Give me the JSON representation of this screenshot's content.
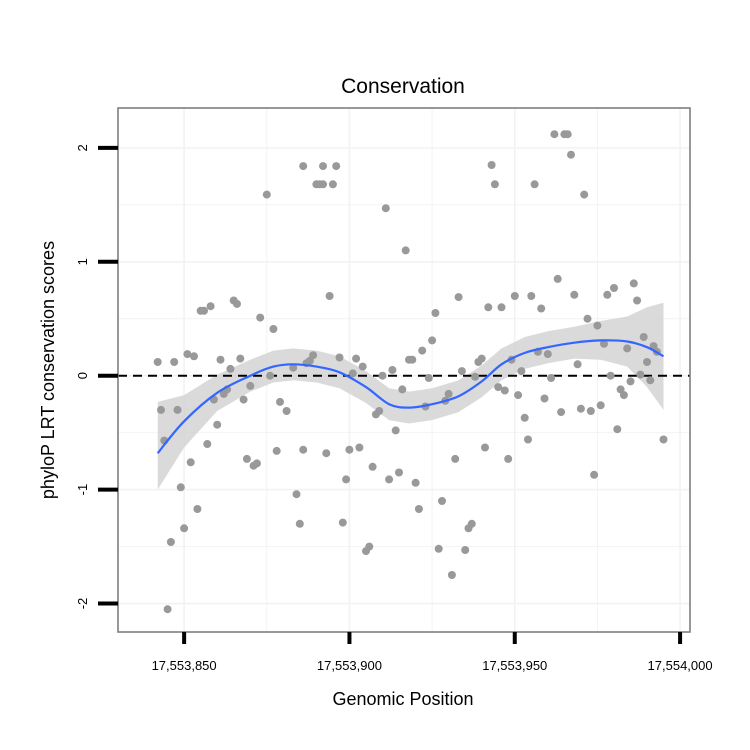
{
  "chart_data": {
    "type": "scatter",
    "title": "Conservation",
    "xlabel": "Genomic Position",
    "ylabel": "phyloP LRT conservation scores",
    "xlim": [
      17553830,
      17554003
    ],
    "ylim": [
      -2.25,
      2.35
    ],
    "x_ticks": [
      17553850,
      17553900,
      17553950,
      17554000
    ],
    "x_tick_labels": [
      "17,553,850",
      "17,553,900",
      "17,553,950",
      "17,554,000"
    ],
    "y_ticks": [
      -2,
      -1,
      0,
      1,
      2
    ],
    "y_tick_labels": [
      "-2",
      "-1",
      "0",
      "1",
      "2"
    ],
    "grid": true,
    "reference_line": {
      "y": 0,
      "style": "dashed"
    },
    "colors": {
      "points": "#999999",
      "smooth": "#3366ff",
      "band": "#d3d3d3",
      "grid": "#f2f2f2",
      "border": "#7f7f7f",
      "reference": "#000000"
    },
    "points": [
      {
        "x": 17553842,
        "y": 0.12
      },
      {
        "x": 17553843,
        "y": -0.3
      },
      {
        "x": 17553844,
        "y": -0.57
      },
      {
        "x": 17553845,
        "y": -2.05
      },
      {
        "x": 17553846,
        "y": -1.46
      },
      {
        "x": 17553847,
        "y": 0.12
      },
      {
        "x": 17553848,
        "y": -0.3
      },
      {
        "x": 17553849,
        "y": -0.98
      },
      {
        "x": 17553850,
        "y": -1.34
      },
      {
        "x": 17553851,
        "y": 0.19
      },
      {
        "x": 17553852,
        "y": -0.76
      },
      {
        "x": 17553853,
        "y": 0.17
      },
      {
        "x": 17553854,
        "y": -1.17
      },
      {
        "x": 17553855,
        "y": 0.57
      },
      {
        "x": 17553856,
        "y": 0.57
      },
      {
        "x": 17553857,
        "y": -0.6
      },
      {
        "x": 17553858,
        "y": 0.61
      },
      {
        "x": 17553859,
        "y": -0.21
      },
      {
        "x": 17553860,
        "y": -0.43
      },
      {
        "x": 17553861,
        "y": 0.14
      },
      {
        "x": 17553862,
        "y": -0.16
      },
      {
        "x": 17553863,
        "y": -0.12
      },
      {
        "x": 17553864,
        "y": 0.06
      },
      {
        "x": 17553865,
        "y": 0.66
      },
      {
        "x": 17553866,
        "y": 0.63
      },
      {
        "x": 17553867,
        "y": 0.15
      },
      {
        "x": 17553868,
        "y": -0.21
      },
      {
        "x": 17553869,
        "y": -0.73
      },
      {
        "x": 17553870,
        "y": -0.09
      },
      {
        "x": 17553871,
        "y": -0.79
      },
      {
        "x": 17553872,
        "y": -0.77
      },
      {
        "x": 17553873,
        "y": 0.51
      },
      {
        "x": 17553875,
        "y": 1.59
      },
      {
        "x": 17553876,
        "y": 0.0
      },
      {
        "x": 17553877,
        "y": 0.41
      },
      {
        "x": 17553878,
        "y": -0.66
      },
      {
        "x": 17553879,
        "y": -0.23
      },
      {
        "x": 17553881,
        "y": -0.31
      },
      {
        "x": 17553883,
        "y": 0.07
      },
      {
        "x": 17553884,
        "y": -1.04
      },
      {
        "x": 17553885,
        "y": -1.3
      },
      {
        "x": 17553886,
        "y": 1.84
      },
      {
        "x": 17553886,
        "y": -0.65
      },
      {
        "x": 17553887,
        "y": 0.11
      },
      {
        "x": 17553888,
        "y": 0.13
      },
      {
        "x": 17553889,
        "y": 0.18
      },
      {
        "x": 17553890,
        "y": 1.68
      },
      {
        "x": 17553891,
        "y": 1.68
      },
      {
        "x": 17553892,
        "y": 1.68
      },
      {
        "x": 17553892,
        "y": 1.84
      },
      {
        "x": 17553893,
        "y": -0.68
      },
      {
        "x": 17553894,
        "y": 0.7
      },
      {
        "x": 17553895,
        "y": 1.68
      },
      {
        "x": 17553896,
        "y": 1.84
      },
      {
        "x": 17553897,
        "y": 0.16
      },
      {
        "x": 17553898,
        "y": -1.29
      },
      {
        "x": 17553899,
        "y": -0.91
      },
      {
        "x": 17553900,
        "y": -0.65
      },
      {
        "x": 17553901,
        "y": 0.02
      },
      {
        "x": 17553902,
        "y": 0.15
      },
      {
        "x": 17553903,
        "y": -0.63
      },
      {
        "x": 17553904,
        "y": 0.08
      },
      {
        "x": 17553905,
        "y": -1.54
      },
      {
        "x": 17553906,
        "y": -1.5
      },
      {
        "x": 17553907,
        "y": -0.8
      },
      {
        "x": 17553908,
        "y": -0.34
      },
      {
        "x": 17553909,
        "y": -0.31
      },
      {
        "x": 17553910,
        "y": 0.0
      },
      {
        "x": 17553911,
        "y": 1.47
      },
      {
        "x": 17553912,
        "y": -0.91
      },
      {
        "x": 17553913,
        "y": 0.05
      },
      {
        "x": 17553914,
        "y": -0.48
      },
      {
        "x": 17553915,
        "y": -0.85
      },
      {
        "x": 17553916,
        "y": -0.12
      },
      {
        "x": 17553917,
        "y": 1.1
      },
      {
        "x": 17553918,
        "y": 0.14
      },
      {
        "x": 17553919,
        "y": 0.14
      },
      {
        "x": 17553920,
        "y": -0.94
      },
      {
        "x": 17553921,
        "y": -1.17
      },
      {
        "x": 17553922,
        "y": 0.22
      },
      {
        "x": 17553923,
        "y": -0.27
      },
      {
        "x": 17553924,
        "y": -0.02
      },
      {
        "x": 17553925,
        "y": 0.31
      },
      {
        "x": 17553926,
        "y": 0.55
      },
      {
        "x": 17553927,
        "y": -1.52
      },
      {
        "x": 17553928,
        "y": -1.1
      },
      {
        "x": 17553929,
        "y": -0.22
      },
      {
        "x": 17553930,
        "y": -0.16
      },
      {
        "x": 17553931,
        "y": -1.75
      },
      {
        "x": 17553932,
        "y": -0.73
      },
      {
        "x": 17553933,
        "y": 0.69
      },
      {
        "x": 17553934,
        "y": 0.04
      },
      {
        "x": 17553935,
        "y": -1.53
      },
      {
        "x": 17553936,
        "y": -1.34
      },
      {
        "x": 17553937,
        "y": -1.3
      },
      {
        "x": 17553938,
        "y": -0.01
      },
      {
        "x": 17553939,
        "y": 0.12
      },
      {
        "x": 17553940,
        "y": 0.15
      },
      {
        "x": 17553941,
        "y": -0.63
      },
      {
        "x": 17553942,
        "y": 0.6
      },
      {
        "x": 17553943,
        "y": 1.85
      },
      {
        "x": 17553944,
        "y": 1.68
      },
      {
        "x": 17553945,
        "y": -0.1
      },
      {
        "x": 17553946,
        "y": 0.6
      },
      {
        "x": 17553947,
        "y": -0.13
      },
      {
        "x": 17553948,
        "y": -0.73
      },
      {
        "x": 17553949,
        "y": 0.14
      },
      {
        "x": 17553950,
        "y": 0.7
      },
      {
        "x": 17553951,
        "y": -0.17
      },
      {
        "x": 17553952,
        "y": 0.04
      },
      {
        "x": 17553953,
        "y": -0.37
      },
      {
        "x": 17553954,
        "y": -0.56
      },
      {
        "x": 17553955,
        "y": 0.7
      },
      {
        "x": 17553956,
        "y": 1.68
      },
      {
        "x": 17553957,
        "y": 0.21
      },
      {
        "x": 17553958,
        "y": 0.59
      },
      {
        "x": 17553959,
        "y": -0.2
      },
      {
        "x": 17553960,
        "y": 0.19
      },
      {
        "x": 17553961,
        "y": -0.02
      },
      {
        "x": 17553962,
        "y": 2.12
      },
      {
        "x": 17553963,
        "y": 0.85
      },
      {
        "x": 17553964,
        "y": -0.32
      },
      {
        "x": 17553965,
        "y": 2.12
      },
      {
        "x": 17553966,
        "y": 2.12
      },
      {
        "x": 17553967,
        "y": 1.94
      },
      {
        "x": 17553968,
        "y": 0.71
      },
      {
        "x": 17553969,
        "y": 0.1
      },
      {
        "x": 17553970,
        "y": -0.29
      },
      {
        "x": 17553971,
        "y": 1.59
      },
      {
        "x": 17553972,
        "y": 0.5
      },
      {
        "x": 17553973,
        "y": -0.31
      },
      {
        "x": 17553974,
        "y": -0.87
      },
      {
        "x": 17553975,
        "y": 0.44
      },
      {
        "x": 17553976,
        "y": -0.26
      },
      {
        "x": 17553977,
        "y": 0.28
      },
      {
        "x": 17553978,
        "y": 0.71
      },
      {
        "x": 17553979,
        "y": 0.0
      },
      {
        "x": 17553980,
        "y": 0.77
      },
      {
        "x": 17553981,
        "y": -0.47
      },
      {
        "x": 17553982,
        "y": -0.12
      },
      {
        "x": 17553983,
        "y": -0.17
      },
      {
        "x": 17553984,
        "y": 0.24
      },
      {
        "x": 17553985,
        "y": -0.05
      },
      {
        "x": 17553986,
        "y": 0.81
      },
      {
        "x": 17553987,
        "y": 0.66
      },
      {
        "x": 17553988,
        "y": 0.01
      },
      {
        "x": 17553989,
        "y": 0.34
      },
      {
        "x": 17553990,
        "y": 0.12
      },
      {
        "x": 17553991,
        "y": -0.04
      },
      {
        "x": 17553992,
        "y": 0.26
      },
      {
        "x": 17553993,
        "y": 0.21
      },
      {
        "x": 17553995,
        "y": -0.56
      }
    ],
    "smooth": {
      "x": [
        17553842,
        17553850,
        17553860,
        17553870,
        17553877,
        17553883,
        17553890,
        17553897,
        17553905,
        17553912,
        17553918,
        17553925,
        17553933,
        17553940,
        17553946,
        17553953,
        17553960,
        17553968,
        17553976,
        17553984,
        17553990,
        17553995
      ],
      "y": [
        -0.68,
        -0.4,
        -0.15,
        0.0,
        0.08,
        0.1,
        0.08,
        0.03,
        -0.1,
        -0.25,
        -0.28,
        -0.25,
        -0.18,
        -0.05,
        0.1,
        0.2,
        0.25,
        0.29,
        0.31,
        0.3,
        0.25,
        0.17
      ],
      "lower": [
        -1.0,
        -0.63,
        -0.31,
        -0.14,
        -0.06,
        -0.04,
        -0.06,
        -0.11,
        -0.24,
        -0.39,
        -0.42,
        -0.39,
        -0.32,
        -0.19,
        -0.04,
        0.06,
        0.11,
        0.15,
        0.14,
        0.08,
        -0.1,
        -0.3
      ],
      "upper": [
        -0.23,
        -0.17,
        0.01,
        0.14,
        0.22,
        0.24,
        0.22,
        0.17,
        0.04,
        -0.11,
        -0.14,
        -0.11,
        -0.04,
        0.09,
        0.24,
        0.34,
        0.39,
        0.43,
        0.48,
        0.52,
        0.6,
        0.64
      ]
    }
  }
}
